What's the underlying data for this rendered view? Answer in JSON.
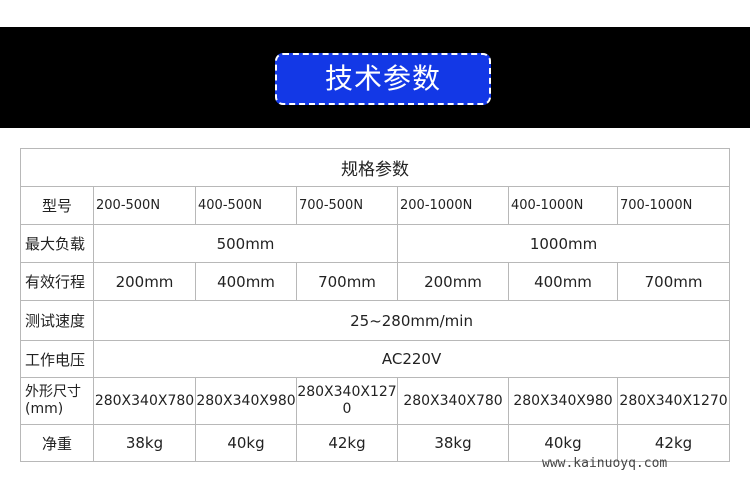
{
  "header": {
    "title": "技术参数",
    "accent": "#1338e6"
  },
  "table": {
    "caption": "规格参数",
    "rows": [
      {
        "label": "型号",
        "cells": [
          "200-500N",
          "400-500N",
          "700-500N",
          "200-1000N",
          "400-1000N",
          "700-1000N"
        ]
      },
      {
        "label": "最大负载",
        "cells": [
          "500mm",
          "1000mm"
        ]
      },
      {
        "label": "有效行程",
        "cells": [
          "200mm",
          "400mm",
          "700mm",
          "200mm",
          "400mm",
          "700mm"
        ]
      },
      {
        "label": "测试速度",
        "cells": [
          "25~280mm/min"
        ]
      },
      {
        "label": "工作电压",
        "cells": [
          "AC220V"
        ]
      },
      {
        "label": "外形尺寸(mm)",
        "cells": [
          "280X340X780",
          "280X340X980",
          "280X340X1270",
          "280X340X780",
          "280X340X980",
          "280X340X1270"
        ]
      },
      {
        "label": "净重",
        "cells": [
          "38kg",
          "40kg",
          "42kg",
          "38kg",
          "40kg",
          "42kg"
        ]
      }
    ]
  },
  "watermark": "www.kainuoyq.com"
}
